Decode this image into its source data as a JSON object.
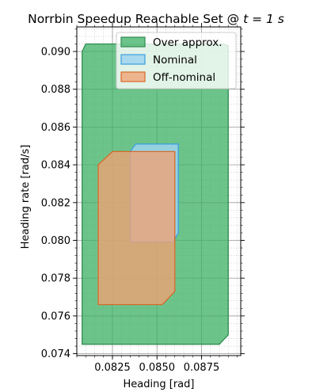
{
  "chart_data": {
    "type": "area",
    "title": "Norrbin Speedup Reachable Set @ ",
    "title_math": "t = 1 s",
    "xlabel": "Heading [rad]",
    "ylabel": "Heading rate [rad/s]",
    "xlim": [
      0.0805,
      0.0897
    ],
    "ylim": [
      0.0739,
      0.0913
    ],
    "x_ticks": [
      0.0825,
      0.085,
      0.0875
    ],
    "x_tick_labels": [
      "0.0825",
      "0.0850",
      "0.0875"
    ],
    "y_ticks": [
      0.074,
      0.076,
      0.078,
      0.08,
      0.082,
      0.084,
      0.086,
      0.088,
      0.09
    ],
    "y_tick_labels": [
      "0.074",
      "0.076",
      "0.078",
      "0.080",
      "0.082",
      "0.084",
      "0.086",
      "0.088",
      "0.090"
    ],
    "grid": true,
    "legend_position": "top-right",
    "series": [
      {
        "name": "Over approx.",
        "fill": "#3cb064",
        "edge": "#2e8b4f",
        "opacity": 0.75,
        "points": [
          [
            0.0808,
            0.09
          ],
          [
            0.081,
            0.0904
          ],
          [
            0.0887,
            0.0904
          ],
          [
            0.089,
            0.0903
          ],
          [
            0.089,
            0.075
          ],
          [
            0.0885,
            0.0745
          ],
          [
            0.0808,
            0.0745
          ]
        ]
      },
      {
        "name": "Nominal",
        "fill": "#9ed4ef",
        "edge": "#3a9ede",
        "opacity": 0.85,
        "points": [
          [
            0.0835,
            0.0847
          ],
          [
            0.0838,
            0.0851
          ],
          [
            0.0862,
            0.0851
          ],
          [
            0.0862,
            0.0804
          ],
          [
            0.0859,
            0.0799
          ],
          [
            0.0835,
            0.0799
          ]
        ]
      },
      {
        "name": "Off-nominal",
        "fill": "#f0a274",
        "edge": "#d86a2a",
        "opacity": 0.78,
        "points": [
          [
            0.0817,
            0.084
          ],
          [
            0.0825,
            0.0847
          ],
          [
            0.086,
            0.0847
          ],
          [
            0.086,
            0.0773
          ],
          [
            0.0853,
            0.0766
          ],
          [
            0.0817,
            0.0766
          ]
        ]
      }
    ]
  }
}
